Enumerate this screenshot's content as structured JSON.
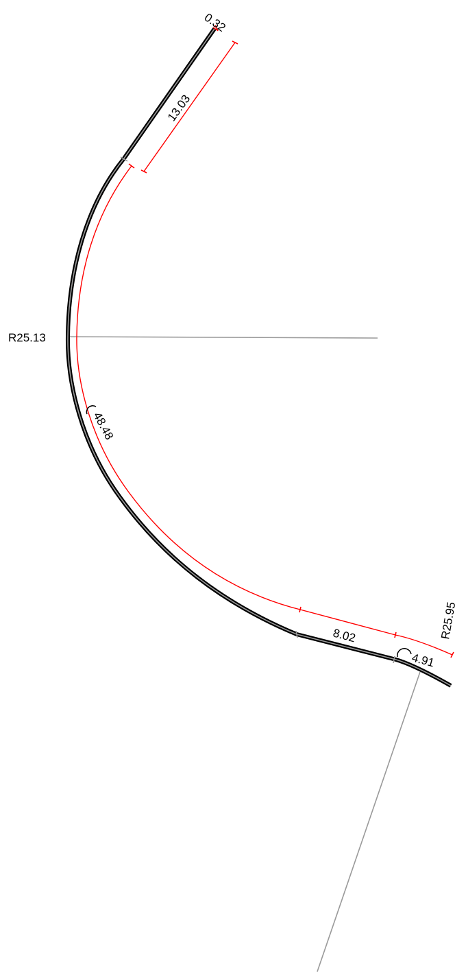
{
  "colors": {
    "pipe": "#000000",
    "pipe_centerline": "#9a9a9a",
    "dimension": "#ff0000",
    "reference_line": "#9a9a9a",
    "text": "#000000",
    "background": "#ffffff"
  },
  "labels": {
    "end_offset": "0.32",
    "straight_top_length": "13.03",
    "radius_upper": "R25.13",
    "arc_upper_length": "48.48",
    "straight_mid_length": "8.02",
    "arc_lower_length": "4.91",
    "radius_lower": "R25.95"
  },
  "icons": {
    "arc_length_symbol": "arc-length-icon"
  }
}
